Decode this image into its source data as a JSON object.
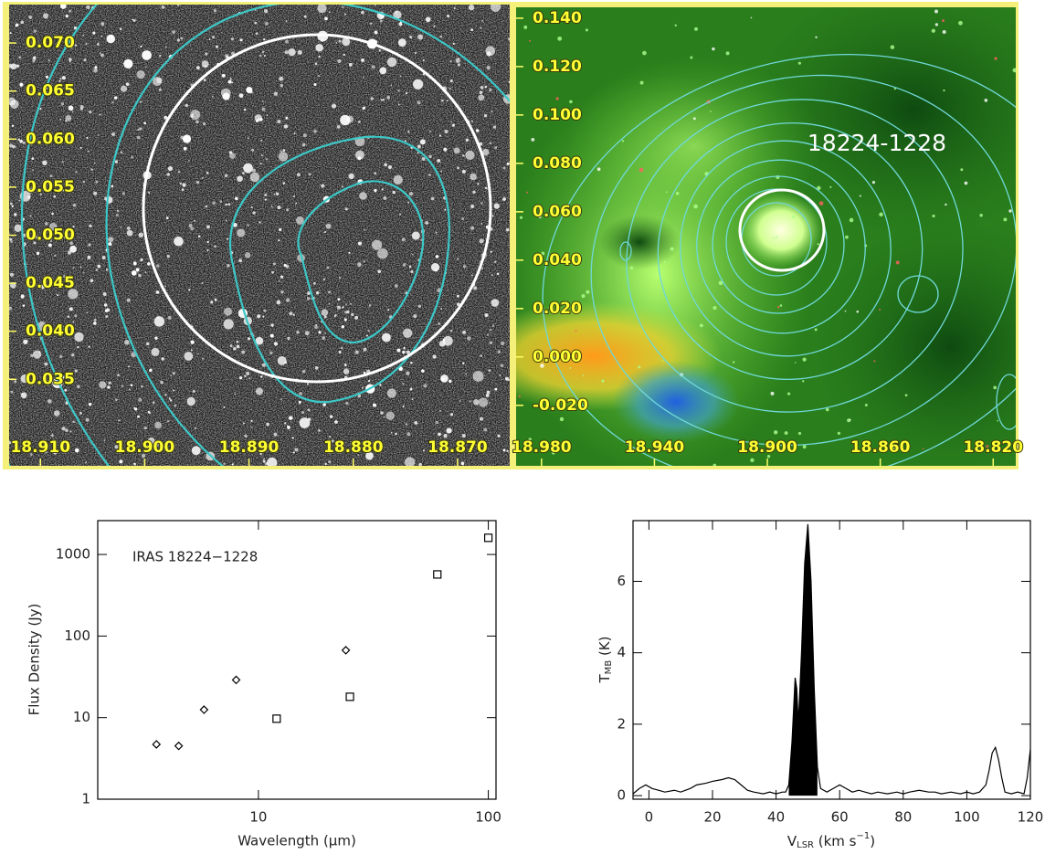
{
  "chart_data": [
    {
      "type": "image",
      "xlim": [
        18.913,
        18.865
      ],
      "ylim": [
        0.026,
        0.074
      ],
      "xticks": [
        {
          "value": 18.91,
          "label": "18.910"
        },
        {
          "value": 18.9,
          "label": "18.900"
        },
        {
          "value": 18.89,
          "label": "18.890"
        },
        {
          "value": 18.88,
          "label": "18.880"
        },
        {
          "value": 18.87,
          "label": "18.870"
        }
      ],
      "yticks": [
        {
          "value": 0.07,
          "label": "0.070"
        },
        {
          "value": 0.065,
          "label": "0.065"
        },
        {
          "value": 0.06,
          "label": "0.060"
        },
        {
          "value": 0.055,
          "label": "0.055"
        },
        {
          "value": 0.05,
          "label": "0.050"
        },
        {
          "value": 0.045,
          "label": "0.045"
        },
        {
          "value": 0.04,
          "label": "0.040"
        },
        {
          "value": 0.035,
          "label": "0.035"
        }
      ]
    },
    {
      "type": "image",
      "annotation": "18224-1228",
      "xlim": [
        18.989,
        18.812
      ],
      "ylim": [
        -0.045,
        0.1445
      ],
      "xticks": [
        {
          "value": 18.98,
          "label": "18.980"
        },
        {
          "value": 18.94,
          "label": "18.940"
        },
        {
          "value": 18.9,
          "label": "18.900"
        },
        {
          "value": 18.86,
          "label": "18.860"
        },
        {
          "value": 18.82,
          "label": "18.820"
        }
      ],
      "yticks": [
        {
          "value": 0.14,
          "label": "0.140"
        },
        {
          "value": 0.12,
          "label": "0.120"
        },
        {
          "value": 0.1,
          "label": "0.100"
        },
        {
          "value": 0.08,
          "label": "0.080"
        },
        {
          "value": 0.06,
          "label": "0.060"
        },
        {
          "value": 0.04,
          "label": "0.040"
        },
        {
          "value": 0.02,
          "label": "0.020"
        },
        {
          "value": 0,
          "label": "0.000"
        },
        {
          "value": -0.02,
          "label": "-0.020"
        }
      ]
    },
    {
      "type": "scatter",
      "annotation": "IRAS 18224−1228",
      "xlabel": "Wavelength (μm)",
      "ylabel": "Flux Density (Jy)",
      "xscale": "log",
      "yscale": "log",
      "xlim": [
        2,
        108
      ],
      "ylim": [
        1,
        2600
      ],
      "xticks": [
        10,
        100
      ],
      "yticks": [
        1,
        10,
        100,
        1000
      ],
      "series": [
        {
          "marker": "diamond",
          "color": "#000000",
          "x": [
            3.6,
            4.5,
            5.8,
            8.0,
            24
          ],
          "values": [
            4.7,
            4.5,
            12.5,
            29,
            67
          ]
        },
        {
          "marker": "square",
          "color": "#000000",
          "x": [
            12,
            25,
            60,
            100
          ],
          "values": [
            9.7,
            18,
            569,
            1600
          ]
        }
      ]
    },
    {
      "type": "line",
      "xlabel": {
        "base": "V",
        "sub": "LSR",
        "text": " (km s",
        "sup": "−1",
        "end": ")"
      },
      "ylabel": {
        "base": "T",
        "sub": "MB",
        "text": " (K)"
      },
      "xlim": [
        -5,
        120
      ],
      "ylim": [
        -0.1,
        7.7
      ],
      "xticks": [
        0,
        20,
        40,
        60,
        80,
        100,
        120
      ],
      "yticks": [
        0,
        2,
        4,
        6
      ],
      "fill_between": [
        44,
        53
      ],
      "series": [
        {
          "color": "#000000",
          "x": [
            -5,
            -3,
            -1,
            0,
            1,
            3,
            5,
            8,
            10,
            13,
            15,
            18,
            20,
            23,
            25,
            27,
            29,
            31,
            33,
            36,
            38,
            40,
            42,
            43,
            44,
            45,
            46,
            46.5,
            47,
            48,
            49,
            50,
            51,
            52,
            53,
            54,
            56,
            58,
            60,
            62,
            64,
            66,
            68,
            70,
            72,
            75,
            78,
            80,
            82,
            85,
            88,
            90,
            92,
            95,
            98,
            100,
            102,
            104,
            106,
            107,
            108,
            109,
            110,
            111,
            112,
            114,
            116,
            118,
            119,
            120
          ],
          "values": [
            0.05,
            0.2,
            0.3,
            0.25,
            0.2,
            0.15,
            0.1,
            0.15,
            0.1,
            0.2,
            0.3,
            0.35,
            0.4,
            0.45,
            0.5,
            0.45,
            0.3,
            0.15,
            0.1,
            0.05,
            0.1,
            0.05,
            0.1,
            0.1,
            0.3,
            1.5,
            3.3,
            3.0,
            2.0,
            4.0,
            6.5,
            7.6,
            6.0,
            3.0,
            0.8,
            0.2,
            0.1,
            0.2,
            0.3,
            0.2,
            0.1,
            0.15,
            0.1,
            0.05,
            0.1,
            0.05,
            0.1,
            0.05,
            0.1,
            0.15,
            0.1,
            0.1,
            0.05,
            0.1,
            0.05,
            0.1,
            0.05,
            0.1,
            0.3,
            0.7,
            1.2,
            1.35,
            1.0,
            0.5,
            0.1,
            0.05,
            0.1,
            0.05,
            0.5,
            1.3
          ]
        }
      ]
    }
  ]
}
